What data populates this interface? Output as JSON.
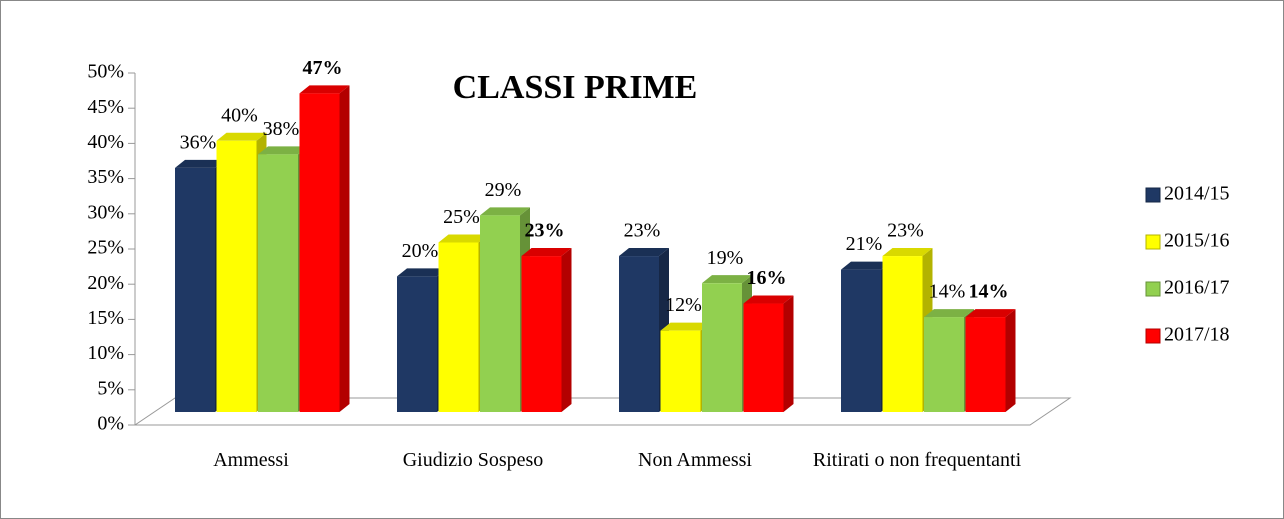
{
  "chart_data": {
    "type": "bar3d",
    "title": "CLASSI PRIME",
    "categories": [
      "Ammessi",
      "Giudizio Sospeso",
      "Non Ammessi",
      "Ritirati o non frequentanti"
    ],
    "series": [
      {
        "name": "2014/15",
        "color": "#1f3864",
        "values": [
          36,
          20,
          23,
          21
        ],
        "value_labels": [
          "36%",
          "20%",
          "23%",
          "21%"
        ]
      },
      {
        "name": "2015/16",
        "color": "#ffff00",
        "values": [
          40,
          25,
          12,
          23
        ],
        "value_labels": [
          "40%",
          "25%",
          "12%",
          "23%"
        ]
      },
      {
        "name": "2016/17",
        "color": "#92d050",
        "values": [
          38,
          29,
          19,
          14
        ],
        "value_labels": [
          "38%",
          "29%",
          "19%",
          "14%"
        ]
      },
      {
        "name": "2017/18",
        "color": "#ff0000",
        "values": [
          47,
          23,
          16,
          14
        ],
        "value_labels": [
          "47%",
          "23%",
          "16%",
          "14%"
        ]
      }
    ],
    "ylim": [
      0,
      50
    ],
    "yticks": [
      {
        "value": 0,
        "label": "0%"
      },
      {
        "value": 5,
        "label": "5%"
      },
      {
        "value": 10,
        "label": "10%"
      },
      {
        "value": 15,
        "label": "15%"
      },
      {
        "value": 20,
        "label": "20%"
      },
      {
        "value": 25,
        "label": "25%"
      },
      {
        "value": 30,
        "label": "30%"
      },
      {
        "value": 35,
        "label": "35%"
      },
      {
        "value": 40,
        "label": "40%"
      },
      {
        "value": 45,
        "label": "45%"
      },
      {
        "value": 50,
        "label": "50%"
      }
    ],
    "legend": "right"
  }
}
